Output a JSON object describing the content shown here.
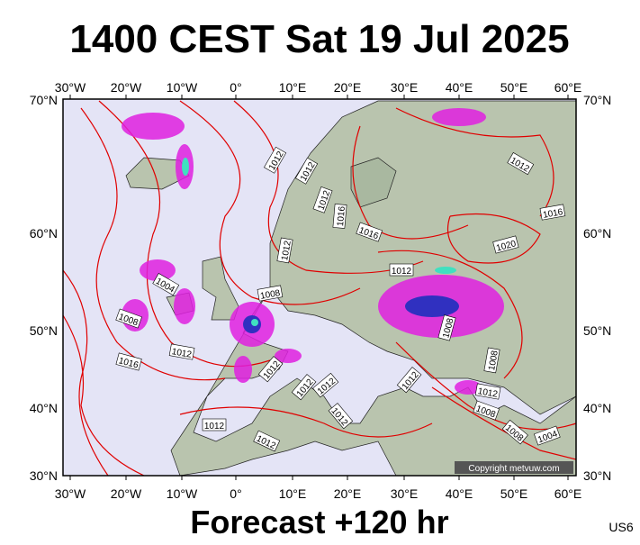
{
  "header": {
    "title": "1400 CEST Sat 19 Jul 2025"
  },
  "map": {
    "lon_labels": [
      "30°W",
      "20°W",
      "10°W",
      "0°",
      "10°E",
      "20°E",
      "30°E",
      "40°E",
      "50°E",
      "60°E"
    ],
    "lat_labels": [
      "70°N",
      "60°N",
      "50°N",
      "40°N",
      "30°N"
    ],
    "isobar_labels": [
      "1012",
      "1012",
      "1012",
      "1016",
      "1016",
      "1012",
      "1012",
      "1016",
      "1020",
      "1012",
      "1004",
      "1008",
      "1008",
      "1012",
      "1016",
      "1012",
      "1008",
      "1012",
      "1012",
      "1012",
      "1012",
      "1008",
      "1012",
      "1008",
      "1012",
      "1012",
      "1008",
      "1004"
    ],
    "copyright": "Copyright metvuw.com"
  },
  "footer": {
    "forecast": "Forecast +120 hr",
    "code": "US6"
  }
}
